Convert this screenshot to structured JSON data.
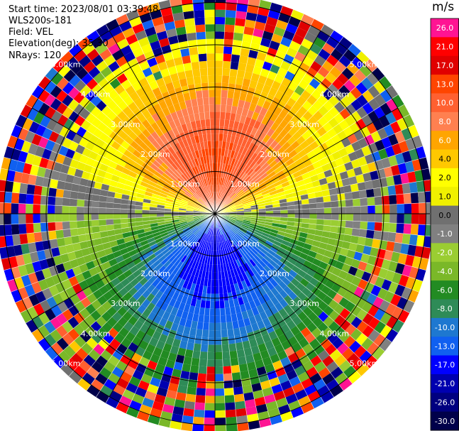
{
  "info": {
    "start_time": "Start time: 2023/08/01 03:39:48",
    "instrument": "WLS200s-181",
    "field": "Field: VEL",
    "elevation": "Elevation(deg): 35.30",
    "nrays": "NRays: 120"
  },
  "chart_data": {
    "type": "heatmap",
    "projection": "polar-ppi",
    "field": "VEL",
    "unit": "m/s",
    "range_rings_km": [
      1.0,
      2.0,
      3.0,
      4.0,
      5.0
    ],
    "ring_labels": [
      "1.00km",
      "2.00km",
      "3.00km",
      "4.00km",
      "5.00km"
    ],
    "spokes": 12,
    "colorbar": {
      "ticks": [
        "26.0",
        "21.0",
        "17.0",
        "13.0",
        "10.0",
        "8.0",
        "6.0",
        "4.0",
        "2.0",
        "1.0",
        "0.0",
        "-1.0",
        "-2.0",
        "-4.0",
        "-6.0",
        "-8.0",
        "-10.0",
        "-13.0",
        "-17.0",
        "-21.0",
        "-26.0",
        "-30.0"
      ],
      "colors": [
        "#ff1493",
        "#ff0000",
        "#e00000",
        "#ff4500",
        "#ff6030",
        "#ff8050",
        "#ffa500",
        "#ffc800",
        "#ffff00",
        "#f0f000",
        "#707070",
        "#808080",
        "#9acd32",
        "#7ab828",
        "#228b22",
        "#2e8b57",
        "#1e78d0",
        "#1060f0",
        "#0000ff",
        "#0000b0",
        "#000080",
        "#00004a"
      ]
    },
    "wind_pattern": {
      "positive_max_azimuth_deg": 0,
      "positive_max_value": 13.0,
      "negative_max_azimuth_deg": 180,
      "negative_max_value": -13.0,
      "near_range_reliable_km": 3.4
    }
  }
}
